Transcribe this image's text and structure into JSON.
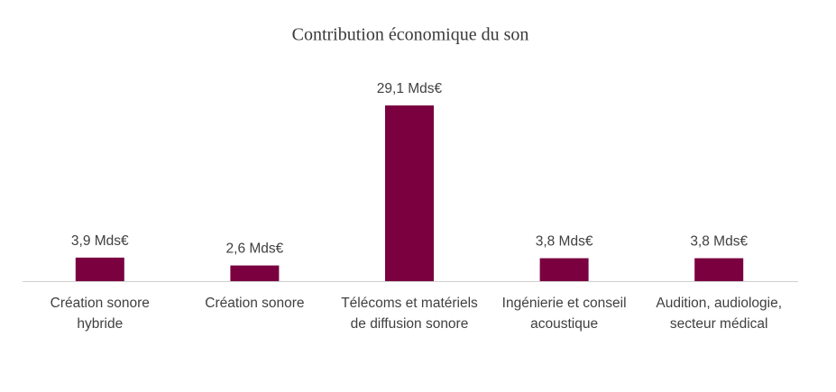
{
  "chart_data": {
    "type": "bar",
    "title": "Contribution économique du son",
    "categories": [
      [
        "Création sonore",
        "hybride"
      ],
      [
        "Création sonore"
      ],
      [
        "Télécoms et matériels",
        "de diffusion sonore"
      ],
      [
        "Ingénierie et conseil",
        "acoustique"
      ],
      [
        "Audition, audiologie,",
        "secteur médical"
      ]
    ],
    "values": [
      3.9,
      2.6,
      29.1,
      3.8,
      3.8
    ],
    "value_labels": [
      "3,9 Mds€",
      "2,6 Mds€",
      "29,1 Mds€",
      "3,8 Mds€",
      "3,8 Mds€"
    ],
    "color": "#7a0040"
  }
}
